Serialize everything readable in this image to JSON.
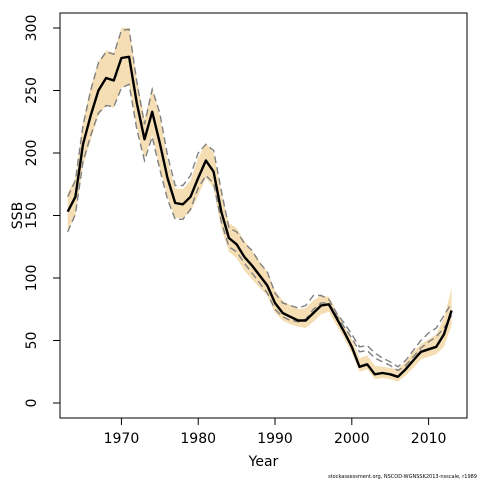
{
  "chart_data": {
    "type": "line",
    "xlabel": "Year",
    "ylabel": "SSB",
    "xlim": [
      1962.0,
      2015.0
    ],
    "ylim": [
      -12,
      312
    ],
    "x_ticks": [
      1970,
      1980,
      1990,
      2000,
      2010
    ],
    "y_ticks": [
      0,
      50,
      100,
      150,
      200,
      250,
      300
    ],
    "footnote": "stockassessment.org, NSCOD-WGNSSK2013-nsscale, r1989",
    "colors": {
      "band": "#f5deb3",
      "main_line": "#000000",
      "dashed_lines": "#808080"
    },
    "series": [
      {
        "style": "solid",
        "points": [
          [
            1963,
            153
          ],
          [
            1964,
            165
          ],
          [
            1965,
            207
          ],
          [
            1966,
            230
          ],
          [
            1967,
            250
          ],
          [
            1968,
            260
          ],
          [
            1969,
            258
          ],
          [
            1970,
            276
          ],
          [
            1971,
            277
          ],
          [
            1972,
            240
          ],
          [
            1973,
            211
          ],
          [
            1974,
            233
          ],
          [
            1975,
            208
          ],
          [
            1976,
            180
          ],
          [
            1977,
            160
          ],
          [
            1978,
            159
          ],
          [
            1979,
            165
          ],
          [
            1980,
            180
          ],
          [
            1981,
            194
          ],
          [
            1982,
            185
          ],
          [
            1983,
            153
          ],
          [
            1984,
            132
          ],
          [
            1985,
            127
          ],
          [
            1986,
            117
          ],
          [
            1987,
            110
          ],
          [
            1988,
            102
          ],
          [
            1989,
            94
          ],
          [
            1990,
            80
          ],
          [
            1991,
            72
          ],
          [
            1992,
            69
          ],
          [
            1993,
            66
          ],
          [
            1994,
            66
          ],
          [
            1995,
            72
          ],
          [
            1996,
            78
          ],
          [
            1997,
            79
          ],
          [
            1998,
            68
          ],
          [
            1999,
            57
          ],
          [
            2000,
            45
          ],
          [
            2001,
            29
          ],
          [
            2002,
            31
          ],
          [
            2003,
            23
          ],
          [
            2004,
            24
          ],
          [
            2005,
            23
          ],
          [
            2006,
            21
          ],
          [
            2007,
            27
          ],
          [
            2008,
            34
          ],
          [
            2009,
            41
          ],
          [
            2010,
            43
          ],
          [
            2011,
            45
          ],
          [
            2012,
            55
          ],
          [
            2013,
            74
          ]
        ]
      },
      {
        "style": "band-upper",
        "points": [
          [
            1963,
            168
          ],
          [
            1964,
            180
          ],
          [
            1965,
            225
          ],
          [
            1966,
            253
          ],
          [
            1967,
            273
          ],
          [
            1968,
            282
          ],
          [
            1969,
            280
          ],
          [
            1970,
            300
          ],
          [
            1971,
            300
          ],
          [
            1972,
            260
          ],
          [
            1973,
            227
          ],
          [
            1974,
            252
          ],
          [
            1975,
            230
          ],
          [
            1976,
            194
          ],
          [
            1977,
            172
          ],
          [
            1978,
            171
          ],
          [
            1979,
            178
          ],
          [
            1980,
            196
          ],
          [
            1981,
            208
          ],
          [
            1982,
            200
          ],
          [
            1983,
            168
          ],
          [
            1984,
            144
          ],
          [
            1985,
            140
          ],
          [
            1986,
            130
          ],
          [
            1987,
            122
          ],
          [
            1988,
            113
          ],
          [
            1989,
            105
          ],
          [
            1990,
            90
          ],
          [
            1991,
            82
          ],
          [
            1992,
            78
          ],
          [
            1993,
            75
          ],
          [
            1994,
            76
          ],
          [
            1995,
            82
          ],
          [
            1996,
            86
          ],
          [
            1997,
            85
          ],
          [
            1998,
            74
          ],
          [
            1999,
            62
          ],
          [
            2000,
            51
          ],
          [
            2001,
            36
          ],
          [
            2002,
            38
          ],
          [
            2003,
            30
          ],
          [
            2004,
            29
          ],
          [
            2005,
            28
          ],
          [
            2006,
            27
          ],
          [
            2007,
            33
          ],
          [
            2008,
            41
          ],
          [
            2009,
            47
          ],
          [
            2010,
            51
          ],
          [
            2011,
            55
          ],
          [
            2012,
            68
          ],
          [
            2013,
            92
          ]
        ]
      },
      {
        "style": "band-lower",
        "points": [
          [
            1963,
            138
          ],
          [
            1964,
            150
          ],
          [
            1965,
            190
          ],
          [
            1966,
            210
          ],
          [
            1967,
            230
          ],
          [
            1968,
            238
          ],
          [
            1969,
            236
          ],
          [
            1970,
            252
          ],
          [
            1971,
            255
          ],
          [
            1972,
            220
          ],
          [
            1973,
            196
          ],
          [
            1974,
            215
          ],
          [
            1975,
            188
          ],
          [
            1976,
            165
          ],
          [
            1977,
            148
          ],
          [
            1978,
            148
          ],
          [
            1979,
            153
          ],
          [
            1980,
            166
          ],
          [
            1981,
            180
          ],
          [
            1982,
            172
          ],
          [
            1983,
            140
          ],
          [
            1984,
            121
          ],
          [
            1985,
            116
          ],
          [
            1986,
            106
          ],
          [
            1987,
            99
          ],
          [
            1988,
            92
          ],
          [
            1989,
            86
          ],
          [
            1990,
            72
          ],
          [
            1991,
            66
          ],
          [
            1992,
            63
          ],
          [
            1993,
            61
          ],
          [
            1994,
            60
          ],
          [
            1995,
            65
          ],
          [
            1996,
            71
          ],
          [
            1997,
            73
          ],
          [
            1998,
            62
          ],
          [
            1999,
            52
          ],
          [
            2000,
            40
          ],
          [
            2001,
            25
          ],
          [
            2002,
            27
          ],
          [
            2003,
            19
          ],
          [
            2004,
            20
          ],
          [
            2005,
            19
          ],
          [
            2006,
            17
          ],
          [
            2007,
            22
          ],
          [
            2008,
            28
          ],
          [
            2009,
            35
          ],
          [
            2010,
            37
          ],
          [
            2011,
            39
          ],
          [
            2012,
            45
          ],
          [
            2013,
            62
          ]
        ]
      },
      {
        "style": "dashed",
        "points": [
          [
            1963,
            165
          ],
          [
            1964,
            178
          ],
          [
            1965,
            222
          ],
          [
            1966,
            250
          ],
          [
            1967,
            272
          ],
          [
            1968,
            281
          ],
          [
            1969,
            279
          ],
          [
            1970,
            298
          ],
          [
            1971,
            299
          ],
          [
            1972,
            257
          ],
          [
            1973,
            223
          ],
          [
            1974,
            251
          ],
          [
            1975,
            232
          ],
          [
            1976,
            198
          ],
          [
            1977,
            174
          ],
          [
            1978,
            174
          ],
          [
            1979,
            182
          ],
          [
            1980,
            200
          ],
          [
            1981,
            207
          ],
          [
            1982,
            202
          ],
          [
            1983,
            170
          ],
          [
            1984,
            140
          ],
          [
            1985,
            137
          ],
          [
            1986,
            128
          ],
          [
            1987,
            122
          ],
          [
            1988,
            112
          ],
          [
            1989,
            105
          ],
          [
            1990,
            88
          ],
          [
            1991,
            80
          ],
          [
            1992,
            78
          ],
          [
            1993,
            76
          ],
          [
            1994,
            78
          ],
          [
            1995,
            86
          ],
          [
            1996,
            86
          ],
          [
            1997,
            83
          ],
          [
            1998,
            72
          ],
          [
            1999,
            64
          ],
          [
            2000,
            55
          ],
          [
            2001,
            45
          ],
          [
            2002,
            46
          ],
          [
            2003,
            40
          ],
          [
            2004,
            36
          ],
          [
            2005,
            33
          ],
          [
            2006,
            29
          ],
          [
            2007,
            34
          ],
          [
            2008,
            42
          ],
          [
            2009,
            50
          ],
          [
            2010,
            56
          ],
          [
            2011,
            60
          ],
          [
            2012,
            70
          ],
          [
            2013,
            80
          ]
        ]
      },
      {
        "style": "dashed",
        "points": [
          [
            1963,
            137
          ],
          [
            1964,
            151
          ],
          [
            1965,
            193
          ],
          [
            1966,
            214
          ],
          [
            1967,
            232
          ],
          [
            1968,
            238
          ],
          [
            1969,
            237
          ],
          [
            1970,
            252
          ],
          [
            1971,
            255
          ],
          [
            1972,
            219
          ],
          [
            1973,
            194
          ],
          [
            1974,
            213
          ],
          [
            1975,
            187
          ],
          [
            1976,
            163
          ],
          [
            1977,
            147
          ],
          [
            1978,
            147
          ],
          [
            1979,
            155
          ],
          [
            1980,
            172
          ],
          [
            1981,
            182
          ],
          [
            1982,
            176
          ],
          [
            1983,
            145
          ],
          [
            1984,
            125
          ],
          [
            1985,
            121
          ],
          [
            1986,
            112
          ],
          [
            1987,
            104
          ],
          [
            1988,
            96
          ],
          [
            1989,
            88
          ],
          [
            1990,
            75
          ],
          [
            1991,
            69
          ],
          [
            1992,
            66
          ],
          [
            1993,
            65
          ],
          [
            1994,
            67
          ],
          [
            1995,
            75
          ],
          [
            1996,
            80
          ],
          [
            1997,
            80
          ],
          [
            1998,
            70
          ],
          [
            1999,
            61
          ],
          [
            2000,
            52
          ],
          [
            2001,
            41
          ],
          [
            2002,
            42
          ],
          [
            2003,
            36
          ],
          [
            2004,
            33
          ],
          [
            2005,
            30
          ],
          [
            2006,
            26
          ],
          [
            2007,
            30
          ],
          [
            2008,
            37
          ],
          [
            2009,
            44
          ],
          [
            2010,
            49
          ],
          [
            2011,
            53
          ],
          [
            2012,
            60
          ],
          [
            2013,
            70
          ]
        ]
      }
    ]
  }
}
